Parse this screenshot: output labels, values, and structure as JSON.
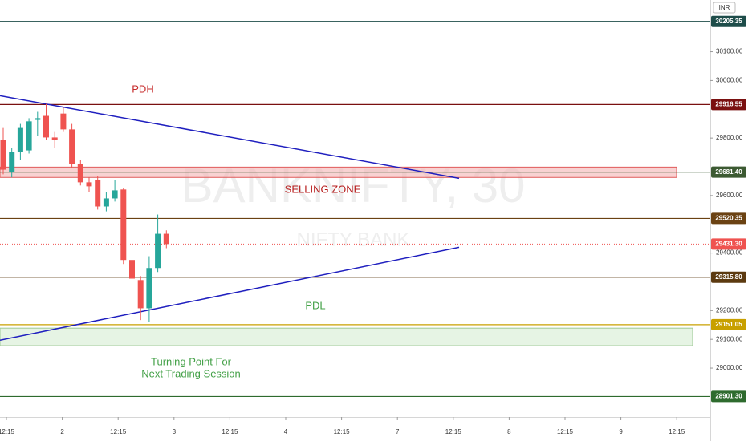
{
  "chart_data": {
    "type": "candlestick",
    "watermark": "BANKNIFTY, 30",
    "watermark_subtitle": "NIFTY BANK",
    "currency": "INR",
    "up_color": "#26a69a",
    "down_color": "#ef5350",
    "ylim": [
      28830,
      30280
    ],
    "yticks": [
      {
        "value": 30100,
        "label": "30100.00"
      },
      {
        "value": 30000,
        "label": "30000.00"
      },
      {
        "value": 29800,
        "label": "29800.00"
      },
      {
        "value": 29600,
        "label": "29600.00"
      },
      {
        "value": 29400,
        "label": "29400.00"
      },
      {
        "value": 29200,
        "label": "29200.00"
      },
      {
        "value": 29100,
        "label": "29100.00"
      },
      {
        "value": 29000,
        "label": "29000.00"
      }
    ],
    "x_labels": [
      "12:15",
      "2",
      "12:15",
      "3",
      "12:15",
      "4",
      "12:15",
      "7",
      "12:15",
      "8",
      "12:15",
      "9",
      "12:15"
    ],
    "open": [
      29793,
      29682,
      29752,
      29757,
      29863,
      29877,
      29802,
      29885,
      29830,
      29710,
      29646,
      29654,
      29562,
      29590,
      29621,
      29376,
      29306,
      29208,
      29348,
      29467
    ],
    "high": [
      29835,
      29766,
      29849,
      29869,
      29891,
      29919,
      29821,
      29905,
      29849,
      29724,
      29663,
      29668,
      29612,
      29654,
      29626,
      29403,
      29320,
      29389,
      29534,
      29479
    ],
    "low": [
      29674,
      29663,
      29724,
      29746,
      29807,
      29793,
      29766,
      29821,
      29696,
      29635,
      29612,
      29551,
      29545,
      29579,
      29362,
      29272,
      29167,
      29161,
      29334,
      29417
    ],
    "close": [
      29690,
      29752,
      29835,
      29858,
      29869,
      29802,
      29793,
      29830,
      29710,
      29646,
      29632,
      29562,
      29590,
      29618,
      29376,
      29311,
      29208,
      29348,
      29467,
      29431.3
    ],
    "levels": {
      "values": [
        30205.35,
        29916.55,
        29681.4,
        29520.35,
        29431.3,
        29315.8,
        29151.05,
        28901.3
      ],
      "value_labels": [
        "30205.35",
        "29916.55",
        "29681.40",
        "29520.35",
        "29431.30",
        "29315.80",
        "29151.05",
        "28901.30"
      ],
      "colors": [
        "#1e4d4a",
        "#7a1010",
        "#3c5a32",
        "#6b4213",
        "#ef5350",
        "#5c3a10",
        "#c8a000",
        "#2e6b2e"
      ]
    },
    "zones": [
      {
        "range": [
          29663,
          29699
        ],
        "color": "#f4b4b4",
        "stroke": "#e05a5a"
      },
      {
        "range": [
          29078,
          29139
        ],
        "color": "#d6ecd2",
        "stroke": "#9cc894"
      }
    ],
    "trendlines": [
      [
        29947,
        29660
      ],
      [
        29097,
        29420
      ]
    ],
    "annotations": [
      {
        "text": "PDH",
        "color": "#c62828"
      },
      {
        "text": "SELLING ZONE",
        "color": "#b71c1c"
      },
      {
        "text": "PDL",
        "color": "#43a047"
      },
      {
        "text": "Turning Point For",
        "color": "#43a047"
      },
      {
        "text": "Next Trading Session",
        "color": "#43a047"
      }
    ]
  }
}
